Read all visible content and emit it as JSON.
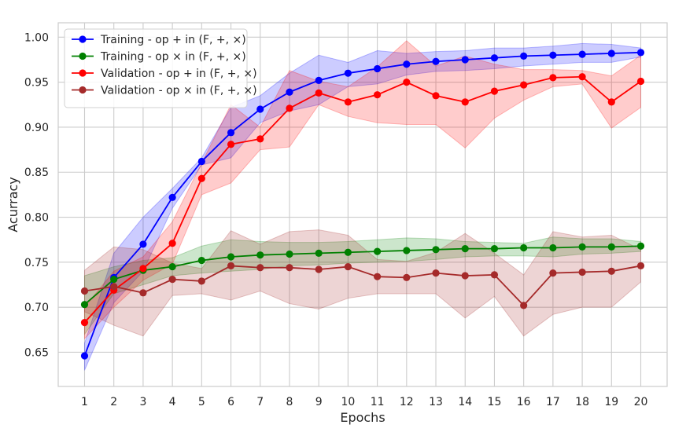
{
  "chart_data": {
    "type": "line",
    "title": "",
    "xlabel": "Epochs",
    "ylabel": "Acurracy",
    "x": [
      1,
      2,
      3,
      4,
      5,
      6,
      7,
      8,
      9,
      10,
      11,
      12,
      13,
      14,
      15,
      16,
      17,
      18,
      19,
      20
    ],
    "xticks": [
      1,
      2,
      3,
      4,
      5,
      6,
      7,
      8,
      9,
      10,
      11,
      12,
      13,
      14,
      15,
      16,
      17,
      18,
      19,
      20
    ],
    "xlim": [
      0.1,
      20.9
    ],
    "ylim": [
      0.612,
      1.016
    ],
    "yticks": [
      0.65,
      0.7,
      0.75,
      0.8,
      0.85,
      0.9,
      0.95,
      1.0
    ],
    "ytick_labels": [
      "0.65",
      "0.70",
      "0.75",
      "0.80",
      "0.85",
      "0.90",
      "0.95",
      "1.00"
    ],
    "grid": true,
    "legend_position": "top-left",
    "series": [
      {
        "name": "Training - op + in (F, +, ×)",
        "color": "#0000ff",
        "values": [
          0.646,
          0.733,
          0.77,
          0.822,
          0.862,
          0.894,
          0.92,
          0.939,
          0.952,
          0.96,
          0.965,
          0.97,
          0.973,
          0.975,
          0.977,
          0.979,
          0.98,
          0.981,
          0.982,
          0.983
        ],
        "lower": [
          0.63,
          0.705,
          0.74,
          0.81,
          0.858,
          0.866,
          0.905,
          0.918,
          0.925,
          0.945,
          0.948,
          0.958,
          0.962,
          0.963,
          0.965,
          0.968,
          0.97,
          0.972,
          0.972,
          0.978
        ],
        "upper": [
          0.66,
          0.76,
          0.8,
          0.832,
          0.866,
          0.922,
          0.935,
          0.96,
          0.98,
          0.972,
          0.985,
          0.982,
          0.984,
          0.985,
          0.988,
          0.988,
          0.99,
          0.993,
          0.992,
          0.988
        ]
      },
      {
        "name": "Training - op × in (F, +, ×)",
        "color": "#008000",
        "values": [
          0.703,
          0.731,
          0.741,
          0.745,
          0.752,
          0.756,
          0.758,
          0.759,
          0.76,
          0.761,
          0.762,
          0.763,
          0.764,
          0.765,
          0.765,
          0.766,
          0.766,
          0.767,
          0.767,
          0.768
        ],
        "lower": [
          0.67,
          0.715,
          0.725,
          0.735,
          0.738,
          0.74,
          0.742,
          0.746,
          0.747,
          0.749,
          0.75,
          0.751,
          0.753,
          0.756,
          0.757,
          0.757,
          0.756,
          0.759,
          0.76,
          0.762
        ],
        "upper": [
          0.735,
          0.745,
          0.752,
          0.755,
          0.768,
          0.775,
          0.773,
          0.772,
          0.772,
          0.773,
          0.775,
          0.777,
          0.776,
          0.773,
          0.772,
          0.771,
          0.778,
          0.776,
          0.776,
          0.773
        ]
      },
      {
        "name": "Validation - op + in (F, +, ×)",
        "color": "#ff0000",
        "values": [
          0.683,
          0.719,
          0.743,
          0.771,
          0.843,
          0.881,
          0.887,
          0.921,
          0.938,
          0.928,
          0.936,
          0.95,
          0.935,
          0.928,
          0.94,
          0.947,
          0.955,
          0.956,
          0.928,
          0.951
        ],
        "lower": [
          0.665,
          0.7,
          0.73,
          0.748,
          0.825,
          0.838,
          0.875,
          0.878,
          0.925,
          0.912,
          0.905,
          0.903,
          0.903,
          0.877,
          0.91,
          0.93,
          0.945,
          0.948,
          0.899,
          0.922
        ],
        "upper": [
          0.7,
          0.74,
          0.756,
          0.795,
          0.86,
          0.925,
          0.9,
          0.963,
          0.951,
          0.945,
          0.967,
          0.996,
          0.968,
          0.979,
          0.97,
          0.964,
          0.964,
          0.963,
          0.957,
          0.98
        ]
      },
      {
        "name": "Validation - op × in (F, +, ×)",
        "color": "#a52a2a",
        "values": [
          0.718,
          0.723,
          0.716,
          0.731,
          0.729,
          0.746,
          0.744,
          0.744,
          0.742,
          0.745,
          0.734,
          0.733,
          0.738,
          0.735,
          0.736,
          0.702,
          0.738,
          0.739,
          0.74,
          0.746
        ],
        "lower": [
          0.695,
          0.68,
          0.668,
          0.713,
          0.715,
          0.708,
          0.718,
          0.704,
          0.698,
          0.71,
          0.715,
          0.715,
          0.715,
          0.688,
          0.712,
          0.668,
          0.692,
          0.7,
          0.7,
          0.728
        ],
        "upper": [
          0.741,
          0.767,
          0.764,
          0.749,
          0.743,
          0.785,
          0.77,
          0.784,
          0.786,
          0.78,
          0.753,
          0.751,
          0.761,
          0.782,
          0.76,
          0.736,
          0.784,
          0.778,
          0.78,
          0.764
        ]
      }
    ]
  }
}
